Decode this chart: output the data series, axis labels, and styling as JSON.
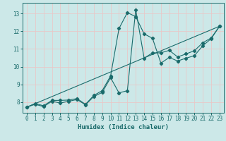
{
  "xlabel": "Humidex (Indice chaleur)",
  "bg_color": "#cce8e8",
  "grid_color": "#e8c8c8",
  "line_color": "#1a6b6b",
  "xlim": [
    -0.5,
    23.5
  ],
  "ylim": [
    7.4,
    13.6
  ],
  "xticks": [
    0,
    1,
    2,
    3,
    4,
    5,
    6,
    7,
    8,
    9,
    10,
    11,
    12,
    13,
    14,
    15,
    16,
    17,
    18,
    19,
    20,
    21,
    22,
    23
  ],
  "yticks": [
    8,
    9,
    10,
    11,
    12,
    13
  ],
  "line1_x": [
    0,
    1,
    2,
    3,
    4,
    5,
    6,
    7,
    8,
    9,
    10,
    11,
    12,
    13,
    14,
    15,
    16,
    17,
    18,
    19,
    20,
    21,
    22,
    23
  ],
  "line1_y": [
    7.72,
    7.92,
    7.8,
    8.1,
    8.1,
    8.12,
    8.2,
    7.88,
    8.38,
    8.65,
    9.48,
    12.15,
    13.05,
    12.82,
    11.85,
    11.6,
    10.2,
    10.52,
    10.32,
    10.48,
    10.62,
    11.18,
    11.58,
    12.28
  ],
  "line2_x": [
    0,
    1,
    2,
    3,
    4,
    5,
    6,
    7,
    8,
    9,
    10,
    11,
    12,
    13,
    14,
    15,
    16,
    17,
    18,
    19,
    20,
    21,
    22,
    23
  ],
  "line2_y": [
    7.72,
    7.88,
    7.75,
    8.05,
    7.95,
    8.05,
    8.15,
    7.85,
    8.32,
    8.55,
    9.38,
    8.52,
    8.65,
    13.22,
    10.48,
    10.78,
    10.78,
    10.92,
    10.55,
    10.72,
    10.9,
    11.35,
    11.62,
    12.28
  ],
  "line3_x": [
    0,
    23
  ],
  "line3_y": [
    7.72,
    12.28
  ]
}
